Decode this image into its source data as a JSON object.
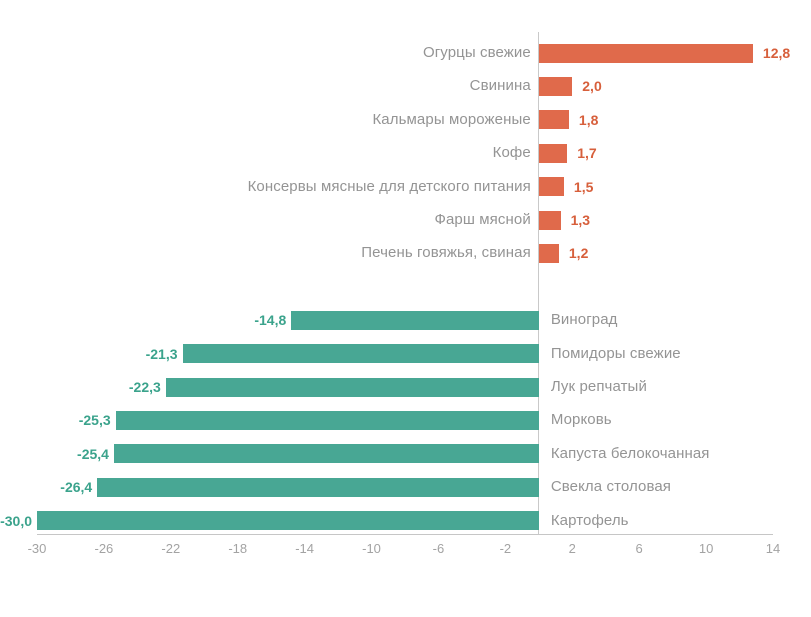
{
  "chart_data": {
    "type": "bar",
    "orientation": "horizontal",
    "title": "",
    "xlabel": "",
    "ylabel": "",
    "xlim": [
      -30,
      14
    ],
    "x_ticks": [
      "-30",
      "-26",
      "-22",
      "-18",
      "-14",
      "-10",
      "-6",
      "-2",
      "2",
      "6",
      "10",
      "14"
    ],
    "grid": false,
    "legend": false,
    "decimal_separator": ",",
    "groups": [
      {
        "name": "price-increase",
        "bar_color": "#E06A4B",
        "value_label_color": "#D75F3B",
        "label_side": "left",
        "items": [
          {
            "label": "Огурцы свежие",
            "value": 12.8,
            "value_display": "12,8"
          },
          {
            "label": "Свинина",
            "value": 2.0,
            "value_display": "2,0"
          },
          {
            "label": "Кальмары мороженые",
            "value": 1.8,
            "value_display": "1,8"
          },
          {
            "label": "Кофе",
            "value": 1.7,
            "value_display": "1,7"
          },
          {
            "label": "Консервы мясные для детского питания",
            "value": 1.5,
            "value_display": "1,5"
          },
          {
            "label": "Фарш мясной",
            "value": 1.3,
            "value_display": "1,3"
          },
          {
            "label": "Печень говяжья, свиная",
            "value": 1.2,
            "value_display": "1,2"
          }
        ]
      },
      {
        "name": "price-decrease",
        "bar_color": "#48A794",
        "value_label_color": "#3BA38C",
        "label_side": "right",
        "items": [
          {
            "label": "Виноград",
            "value": -14.8,
            "value_display": "-14,8"
          },
          {
            "label": "Помидоры свежие",
            "value": -21.3,
            "value_display": "-21,3"
          },
          {
            "label": "Лук репчатый",
            "value": -22.3,
            "value_display": "-22,3"
          },
          {
            "label": "Морковь",
            "value": -25.3,
            "value_display": "-25,3"
          },
          {
            "label": "Капуста белокочанная",
            "value": -25.4,
            "value_display": "-25,4"
          },
          {
            "label": "Свекла столовая",
            "value": -26.4,
            "value_display": "-26,4"
          },
          {
            "label": "Картофель",
            "value": -30.0,
            "value_display": "-30,0"
          }
        ]
      }
    ],
    "colors": {
      "category_label": "#949494",
      "tick_label": "#A3A3A3",
      "axis_line": "#C6C6C6",
      "zero_line": "#C9C9C9",
      "background": "#FFFFFF"
    }
  }
}
